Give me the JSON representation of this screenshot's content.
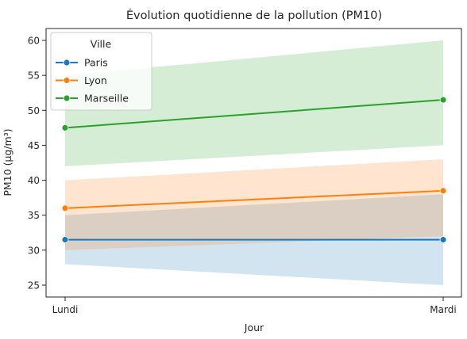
{
  "chart_data": {
    "type": "line",
    "title": "Évolution quotidienne de la pollution (PM10)",
    "xlabel": "Jour",
    "ylabel": "PM10 (µg/m³)",
    "categories": [
      "Lundi",
      "Mardi"
    ],
    "ylim": [
      23.3,
      61.7
    ],
    "yticks": [
      25,
      30,
      35,
      40,
      45,
      50,
      55,
      60
    ],
    "grid": false,
    "legend": {
      "title": "Ville",
      "placement": "top-left"
    },
    "series": [
      {
        "name": "Paris",
        "color": "#1f77b4",
        "values": [
          31.5,
          31.5
        ],
        "band_low": [
          28,
          25
        ],
        "band_high": [
          35,
          38
        ]
      },
      {
        "name": "Lyon",
        "color": "#ff7f0e",
        "values": [
          36,
          38.5
        ],
        "band_low": [
          30,
          32
        ],
        "band_high": [
          40,
          43
        ]
      },
      {
        "name": "Marseille",
        "color": "#2ca02c",
        "values": [
          47.5,
          51.5
        ],
        "band_low": [
          42,
          45
        ],
        "band_high": [
          55,
          60
        ]
      }
    ]
  }
}
